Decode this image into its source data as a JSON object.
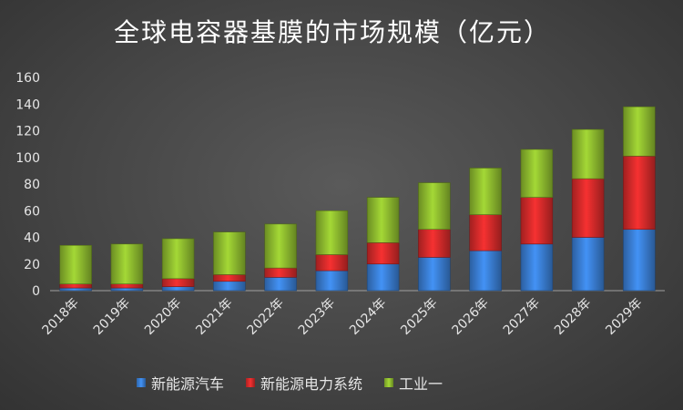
{
  "chart_data": {
    "type": "bar",
    "stacked": true,
    "title": "全球电容器基膜的市场规模（亿元）",
    "categories": [
      "2018年",
      "2019年",
      "2020年",
      "2021年",
      "2022年",
      "2023年",
      "2024年",
      "2025年",
      "2026年",
      "2027年",
      "2028年",
      "2029年"
    ],
    "ylim": [
      0,
      160
    ],
    "yticks": [
      0,
      20,
      40,
      60,
      80,
      100,
      120,
      140,
      160
    ],
    "grid": false,
    "legend_position": "bottom",
    "series": [
      {
        "name": "新能源汽车",
        "color": "#3a7fd5",
        "values": [
          2,
          2,
          3,
          7,
          10,
          15,
          20,
          25,
          30,
          35,
          40,
          46
        ]
      },
      {
        "name": "新能源电力系统",
        "color": "#d62b2b",
        "values": [
          3,
          3,
          6,
          5,
          7,
          12,
          16,
          21,
          27,
          35,
          44,
          55
        ]
      },
      {
        "name": "工业一",
        "color": "#8fbc2f",
        "values": [
          29,
          30,
          30,
          32,
          33,
          33,
          34,
          35,
          35,
          36,
          37,
          37
        ]
      }
    ]
  }
}
